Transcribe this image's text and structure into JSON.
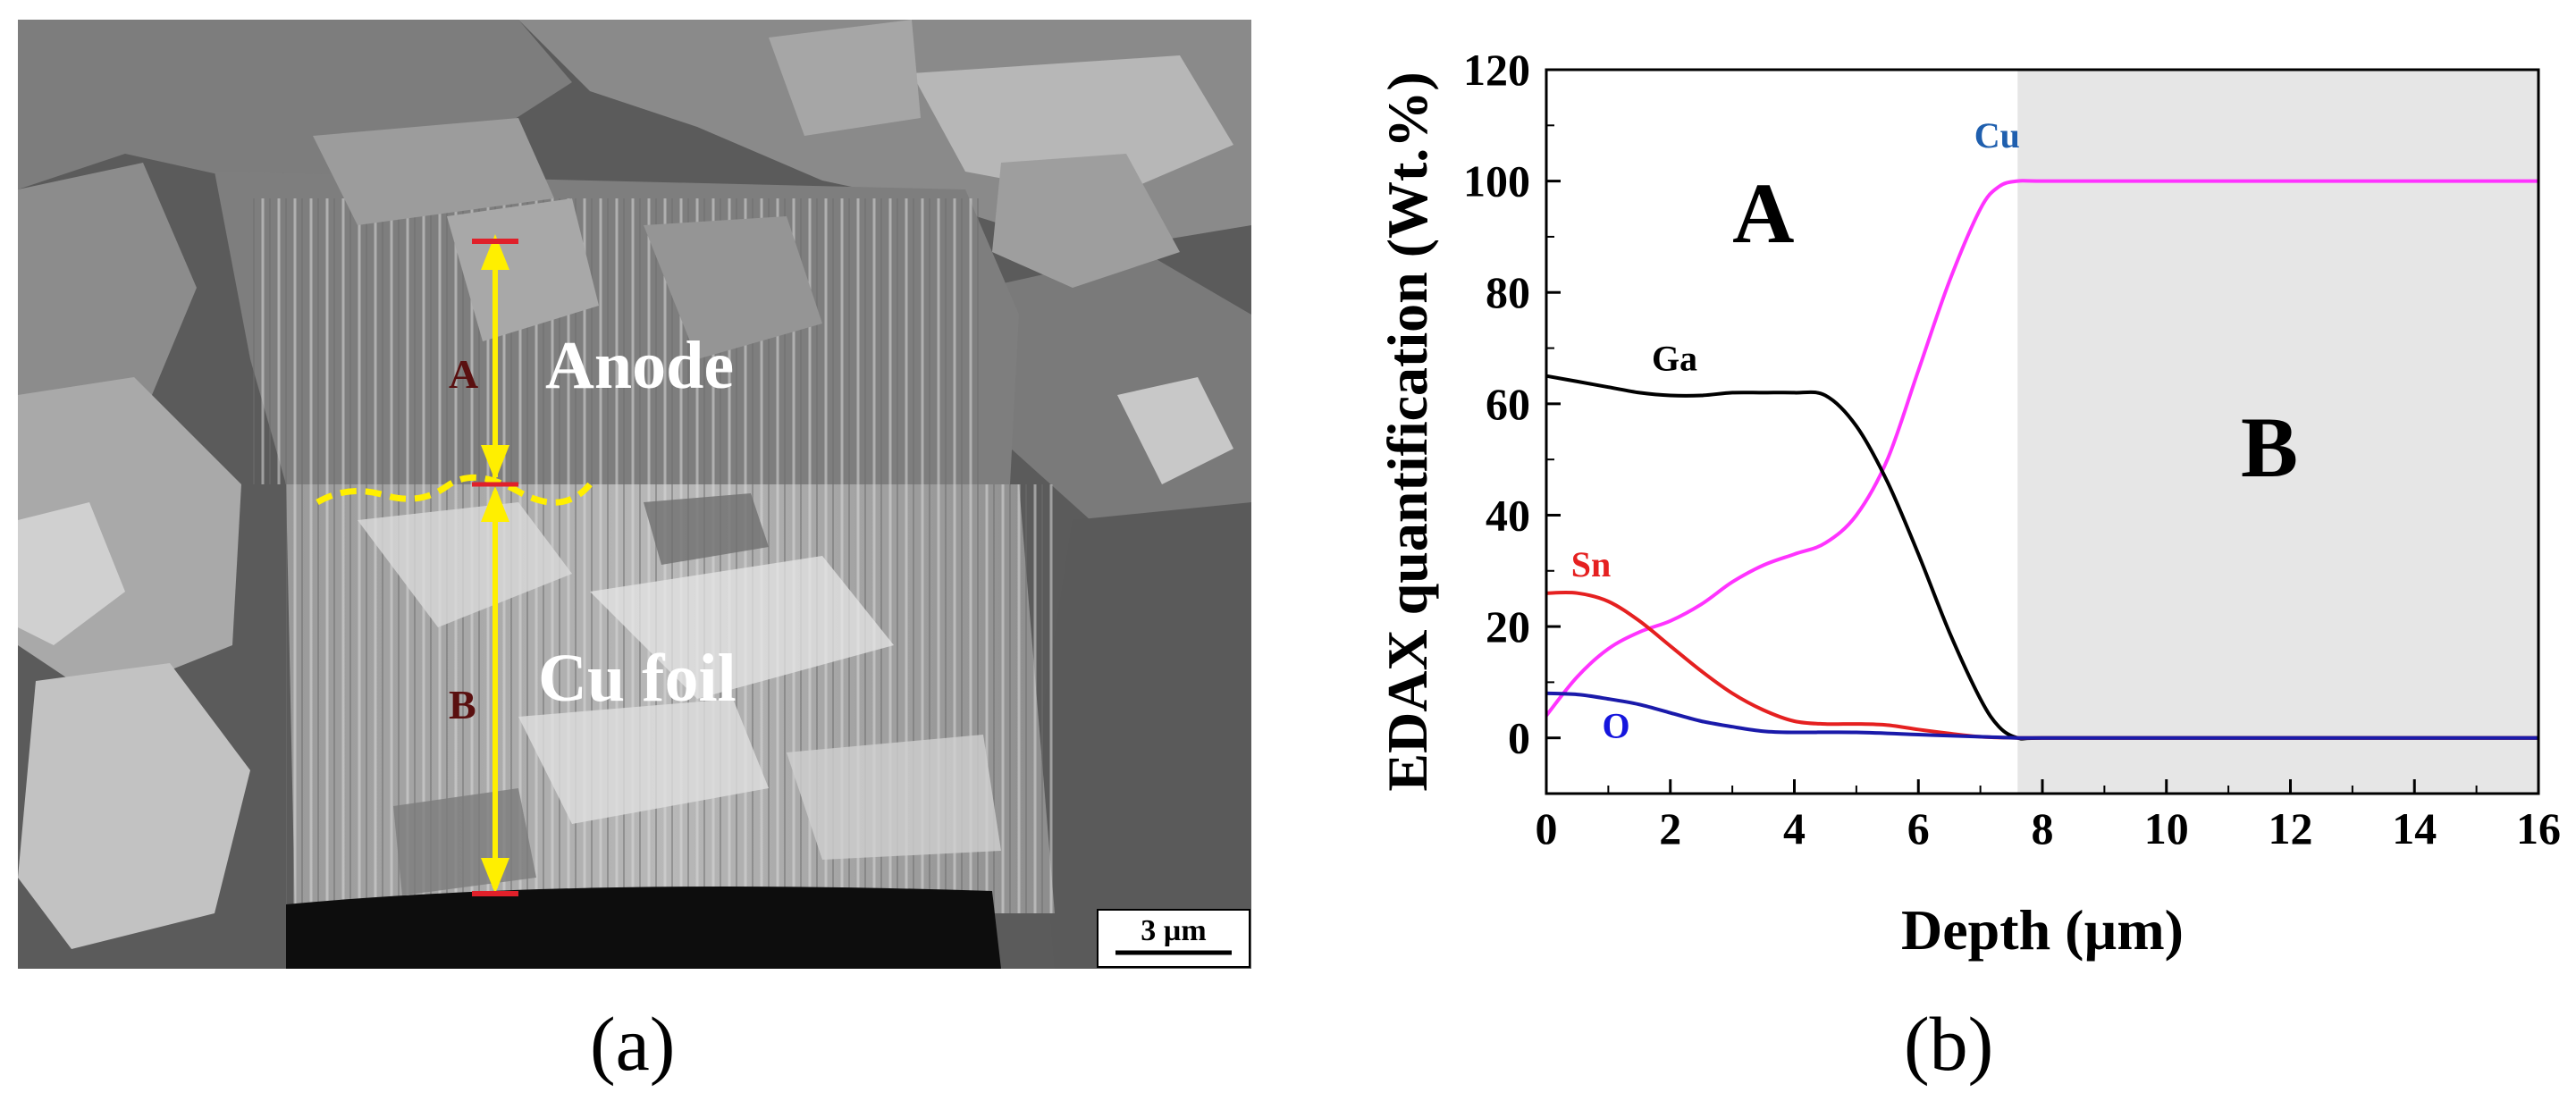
{
  "panel_a": {
    "caption": "(a)",
    "labels": {
      "anode": "Anode",
      "cu_foil": "Cu foil",
      "marker_a": "A",
      "marker_b": "B"
    },
    "scale_bar": "3 µm",
    "colors": {
      "arrow": "#ffef00",
      "cap": "#e0202a",
      "boundary": "#ffef00"
    }
  },
  "panel_b": {
    "caption": "(b)",
    "region_a": "A",
    "region_b": "B"
  },
  "chart_data": {
    "type": "line",
    "xlabel": "Depth (µm)",
    "ylabel": "EDAX quantification (Wt.%)",
    "xlim": [
      0,
      16
    ],
    "ylim": [
      -10,
      120
    ],
    "xticks": [
      0,
      2,
      4,
      6,
      8,
      10,
      12,
      14,
      16
    ],
    "yticks": [
      0,
      20,
      40,
      60,
      80,
      100,
      120
    ],
    "shaded_region": {
      "from": 7.6,
      "to": 16,
      "color": "#e6e6e6"
    },
    "series": [
      {
        "name": "Cu",
        "color": "#ff33ff",
        "label_color": "#1f5fae",
        "label_at": [
          6.9,
          106
        ],
        "x": [
          0,
          0.5,
          1,
          1.5,
          2,
          2.5,
          3,
          3.5,
          4,
          4.5,
          5,
          5.5,
          6,
          6.5,
          7,
          7.3,
          7.6,
          8,
          10,
          12,
          14,
          16
        ],
        "y": [
          4,
          11,
          16,
          19,
          21,
          24,
          28,
          31,
          33,
          35,
          40,
          50,
          66,
          82,
          95,
          99,
          100,
          100,
          100,
          100,
          100,
          100
        ]
      },
      {
        "name": "Ga",
        "color": "#000000",
        "label_color": "#000000",
        "label_at": [
          1.7,
          66
        ],
        "x": [
          0,
          0.5,
          1,
          1.5,
          2,
          2.5,
          3,
          3.5,
          4,
          4.5,
          5,
          5.5,
          6,
          6.5,
          7,
          7.3,
          7.6,
          8,
          10,
          12,
          14,
          16
        ],
        "y": [
          65,
          64,
          63,
          62,
          61.5,
          61.5,
          62,
          62,
          62,
          61.5,
          56,
          46,
          33,
          19,
          7,
          2,
          0,
          0,
          0,
          0,
          0,
          0
        ]
      },
      {
        "name": "Sn",
        "color": "#e52020",
        "label_color": "#e52020",
        "label_at": [
          0.4,
          29
        ],
        "x": [
          0,
          0.5,
          1,
          1.5,
          2,
          2.5,
          3,
          3.5,
          4,
          4.5,
          5,
          5.5,
          6,
          6.5,
          7,
          7.6,
          8,
          10,
          12,
          14,
          16
        ],
        "y": [
          26,
          26,
          24.5,
          21,
          16.5,
          12,
          8,
          5,
          3,
          2.5,
          2.5,
          2.3,
          1.5,
          0.8,
          0.2,
          0,
          0,
          0,
          0,
          0,
          0
        ]
      },
      {
        "name": "O",
        "color": "#1a1aaa",
        "label_color": "#1515dd",
        "label_at": [
          0.9,
          0
        ],
        "x": [
          0,
          0.5,
          1,
          1.5,
          2,
          2.5,
          3,
          3.5,
          4,
          5,
          6,
          7,
          7.6,
          8,
          10,
          12,
          14,
          16
        ],
        "y": [
          8,
          7.8,
          7,
          6,
          4.5,
          3,
          2,
          1.2,
          1,
          1,
          0.6,
          0.2,
          0,
          0,
          0,
          0,
          0,
          0
        ]
      }
    ]
  }
}
